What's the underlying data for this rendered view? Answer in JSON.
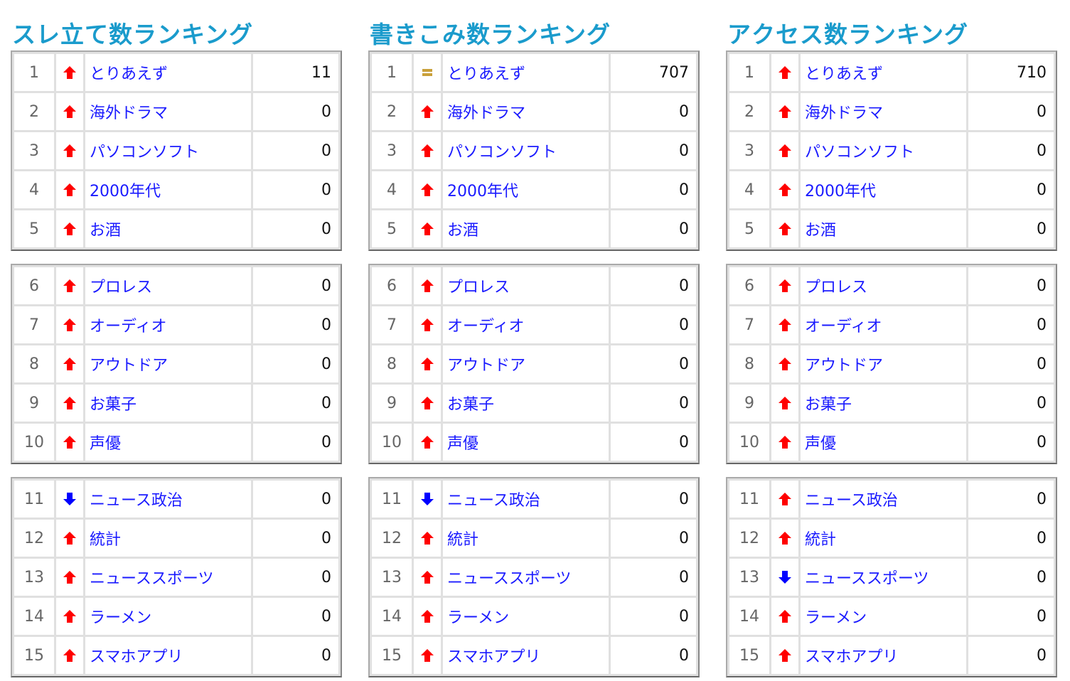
{
  "colors": {
    "title": "#1a9bcc",
    "up": "#ff0000",
    "down": "#0000ff",
    "same": "#c9a03a",
    "link": "#1a1aff"
  },
  "rankings": [
    {
      "title": "スレ立て数ランキング",
      "items": [
        {
          "rank": "1",
          "trend": "up-arrow",
          "name": "とりあえず",
          "value": "11"
        },
        {
          "rank": "2",
          "trend": "up-arrow",
          "name": "海外ドラマ",
          "value": "0"
        },
        {
          "rank": "3",
          "trend": "up-arrow",
          "name": "パソコンソフト",
          "value": "0"
        },
        {
          "rank": "4",
          "trend": "up-arrow",
          "name": "2000年代",
          "value": "0"
        },
        {
          "rank": "5",
          "trend": "up-arrow",
          "name": "お酒",
          "value": "0"
        },
        {
          "rank": "6",
          "trend": "up-arrow",
          "name": "プロレス",
          "value": "0"
        },
        {
          "rank": "7",
          "trend": "up-arrow",
          "name": "オーディオ",
          "value": "0"
        },
        {
          "rank": "8",
          "trend": "up-arrow",
          "name": "アウトドア",
          "value": "0"
        },
        {
          "rank": "9",
          "trend": "up-arrow",
          "name": "お菓子",
          "value": "0"
        },
        {
          "rank": "10",
          "trend": "up-arrow",
          "name": "声優",
          "value": "0"
        },
        {
          "rank": "11",
          "trend": "down-arrow",
          "name": "ニュース政治",
          "value": "0"
        },
        {
          "rank": "12",
          "trend": "up-arrow",
          "name": "統計",
          "value": "0"
        },
        {
          "rank": "13",
          "trend": "up-arrow",
          "name": "ニューススポーツ",
          "value": "0"
        },
        {
          "rank": "14",
          "trend": "up-arrow",
          "name": "ラーメン",
          "value": "0"
        },
        {
          "rank": "15",
          "trend": "up-arrow",
          "name": "スマホアプリ",
          "value": "0"
        }
      ]
    },
    {
      "title": "書きこみ数ランキング",
      "items": [
        {
          "rank": "1",
          "trend": "same",
          "name": "とりあえず",
          "value": "707"
        },
        {
          "rank": "2",
          "trend": "up-arrow",
          "name": "海外ドラマ",
          "value": "0"
        },
        {
          "rank": "3",
          "trend": "up-arrow",
          "name": "パソコンソフト",
          "value": "0"
        },
        {
          "rank": "4",
          "trend": "up-arrow",
          "name": "2000年代",
          "value": "0"
        },
        {
          "rank": "5",
          "trend": "up-arrow",
          "name": "お酒",
          "value": "0"
        },
        {
          "rank": "6",
          "trend": "up-arrow",
          "name": "プロレス",
          "value": "0"
        },
        {
          "rank": "7",
          "trend": "up-arrow",
          "name": "オーディオ",
          "value": "0"
        },
        {
          "rank": "8",
          "trend": "up-arrow",
          "name": "アウトドア",
          "value": "0"
        },
        {
          "rank": "9",
          "trend": "up-arrow",
          "name": "お菓子",
          "value": "0"
        },
        {
          "rank": "10",
          "trend": "up-arrow",
          "name": "声優",
          "value": "0"
        },
        {
          "rank": "11",
          "trend": "down-arrow",
          "name": "ニュース政治",
          "value": "0"
        },
        {
          "rank": "12",
          "trend": "up-arrow",
          "name": "統計",
          "value": "0"
        },
        {
          "rank": "13",
          "trend": "up-arrow",
          "name": "ニューススポーツ",
          "value": "0"
        },
        {
          "rank": "14",
          "trend": "up-arrow",
          "name": "ラーメン",
          "value": "0"
        },
        {
          "rank": "15",
          "trend": "up-arrow",
          "name": "スマホアプリ",
          "value": "0"
        }
      ]
    },
    {
      "title": "アクセス数ランキング",
      "items": [
        {
          "rank": "1",
          "trend": "up-arrow",
          "name": "とりあえず",
          "value": "710"
        },
        {
          "rank": "2",
          "trend": "up-arrow",
          "name": "海外ドラマ",
          "value": "0"
        },
        {
          "rank": "3",
          "trend": "up-arrow",
          "name": "パソコンソフト",
          "value": "0"
        },
        {
          "rank": "4",
          "trend": "up-arrow",
          "name": "2000年代",
          "value": "0"
        },
        {
          "rank": "5",
          "trend": "up-arrow",
          "name": "お酒",
          "value": "0"
        },
        {
          "rank": "6",
          "trend": "up-arrow",
          "name": "プロレス",
          "value": "0"
        },
        {
          "rank": "7",
          "trend": "up-arrow",
          "name": "オーディオ",
          "value": "0"
        },
        {
          "rank": "8",
          "trend": "up-arrow",
          "name": "アウトドア",
          "value": "0"
        },
        {
          "rank": "9",
          "trend": "up-arrow",
          "name": "お菓子",
          "value": "0"
        },
        {
          "rank": "10",
          "trend": "up-arrow",
          "name": "声優",
          "value": "0"
        },
        {
          "rank": "11",
          "trend": "up-arrow",
          "name": "ニュース政治",
          "value": "0"
        },
        {
          "rank": "12",
          "trend": "up-arrow",
          "name": "統計",
          "value": "0"
        },
        {
          "rank": "13",
          "trend": "down-arrow",
          "name": "ニューススポーツ",
          "value": "0"
        },
        {
          "rank": "14",
          "trend": "up-arrow",
          "name": "ラーメン",
          "value": "0"
        },
        {
          "rank": "15",
          "trend": "up-arrow",
          "name": "スマホアプリ",
          "value": "0"
        }
      ]
    }
  ]
}
